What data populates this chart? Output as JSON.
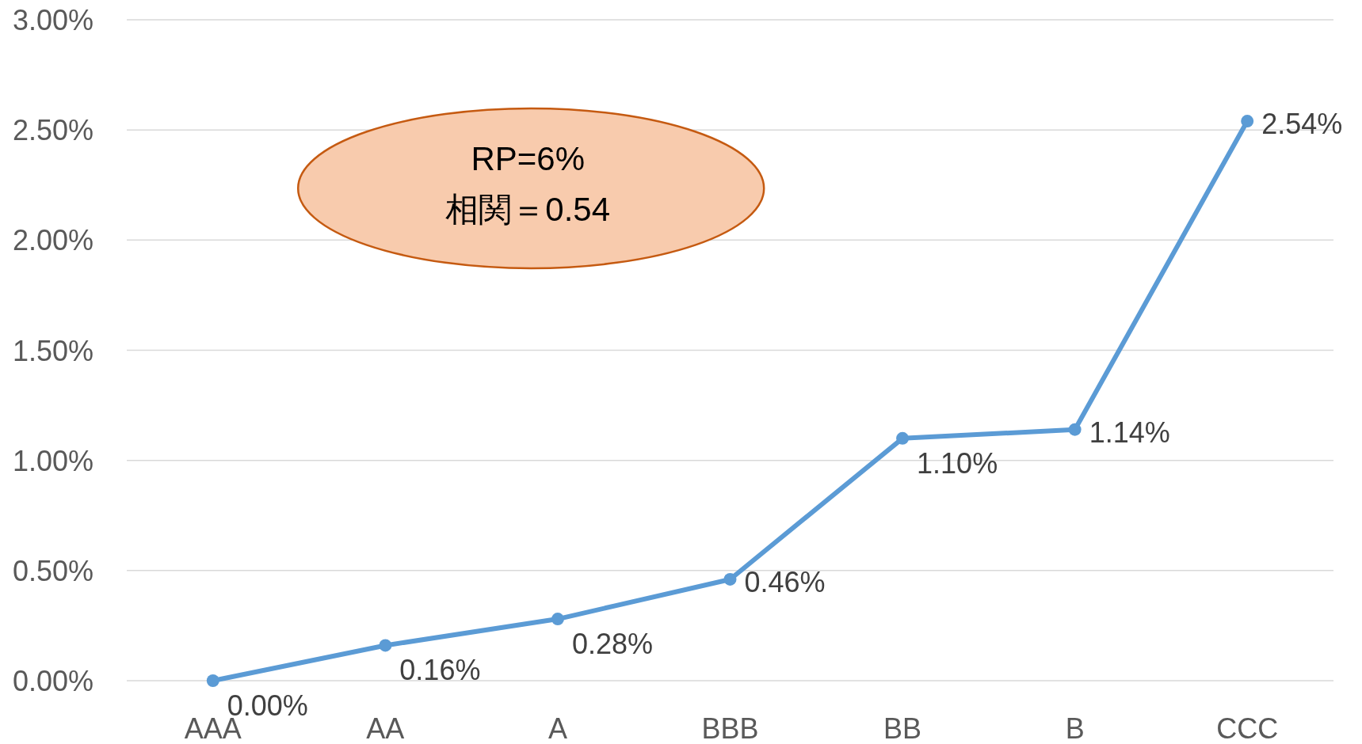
{
  "chart_data": {
    "type": "line",
    "categories": [
      "AAA",
      "AA",
      "A",
      "BBB",
      "BB",
      "B",
      "CCC"
    ],
    "series": [
      {
        "color": "#5b9bd5",
        "values": [
          0,
          0.16,
          0.28,
          0.46,
          1.1,
          1.14,
          2.54
        ],
        "value_labels": [
          "0.00%",
          "0.16%",
          "0.28%",
          "0.46%",
          "1.10%",
          "1.14%",
          "2.54%"
        ]
      }
    ],
    "ylim": [
      0,
      3
    ],
    "yticks": [
      {
        "value": 0,
        "label": "0.00%"
      },
      {
        "value": 0.5,
        "label": "0.50%"
      },
      {
        "value": 1,
        "label": "1.00%"
      },
      {
        "value": 1.5,
        "label": "1.50%"
      },
      {
        "value": 2,
        "label": "2.00%"
      },
      {
        "value": 2.5,
        "label": "2.50%"
      },
      {
        "value": 3,
        "label": "3.00%"
      }
    ],
    "grid": "y",
    "marker": "circle",
    "line_style": "solid",
    "annotations": [
      "RP=6%",
      "相関＝0.54"
    ]
  }
}
